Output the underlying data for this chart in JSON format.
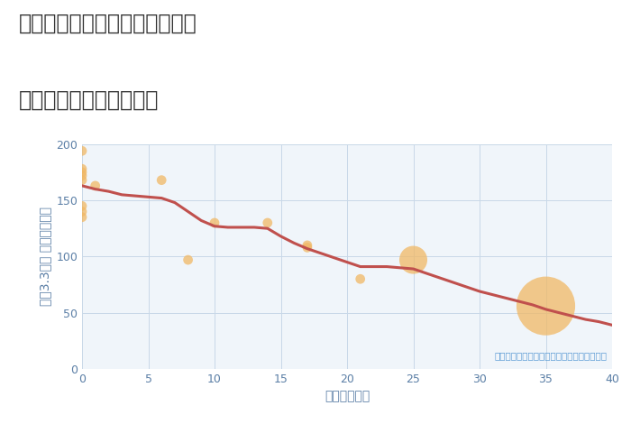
{
  "title_line1": "愛知県名古屋市千種区春里町の",
  "title_line2": "築年数別中古戸建て価格",
  "xlabel": "築年数（年）",
  "ylabel": "坪（3.3㎡） 単価（万円）",
  "scatter_x": [
    0,
    0,
    0,
    0,
    0,
    0,
    0,
    0,
    1,
    6,
    8,
    10,
    14,
    17,
    17,
    21,
    25,
    35
  ],
  "scatter_y": [
    194,
    178,
    175,
    172,
    168,
    145,
    140,
    135,
    163,
    168,
    97,
    130,
    130,
    110,
    108,
    80,
    97,
    56
  ],
  "scatter_sizes": [
    60,
    60,
    60,
    60,
    60,
    60,
    60,
    60,
    60,
    60,
    60,
    60,
    60,
    60,
    60,
    60,
    500,
    2200
  ],
  "scatter_color": "#F0B865",
  "scatter_alpha": 0.75,
  "line_x": [
    0,
    1,
    2,
    3,
    4,
    5,
    6,
    7,
    8,
    9,
    10,
    11,
    12,
    13,
    14,
    15,
    16,
    17,
    18,
    19,
    20,
    21,
    22,
    23,
    24,
    25,
    26,
    27,
    28,
    29,
    30,
    31,
    32,
    33,
    34,
    35,
    36,
    37,
    38,
    39,
    40
  ],
  "line_y": [
    163,
    160,
    158,
    155,
    154,
    153,
    152,
    148,
    140,
    132,
    127,
    126,
    126,
    126,
    125,
    118,
    112,
    107,
    103,
    99,
    95,
    91,
    91,
    91,
    90,
    89,
    85,
    81,
    77,
    73,
    69,
    66,
    63,
    60,
    57,
    53,
    50,
    47,
    44,
    42,
    39
  ],
  "line_color": "#C0504D",
  "line_width": 2.2,
  "xlim": [
    0,
    40
  ],
  "ylim": [
    0,
    200
  ],
  "xticks": [
    0,
    5,
    10,
    15,
    20,
    25,
    30,
    35,
    40
  ],
  "yticks": [
    0,
    50,
    100,
    150,
    200
  ],
  "grid_color": "#C8D8E8",
  "bg_color": "#F0F5FA",
  "annotation": "円の大きさは、取引のあった物件面積を示す",
  "annotation_color": "#5B9BD5",
  "title_fontsize": 17,
  "label_fontsize": 10,
  "tick_fontsize": 9,
  "tick_color": "#5B7FA6",
  "axis_label_color": "#5B7FA6"
}
